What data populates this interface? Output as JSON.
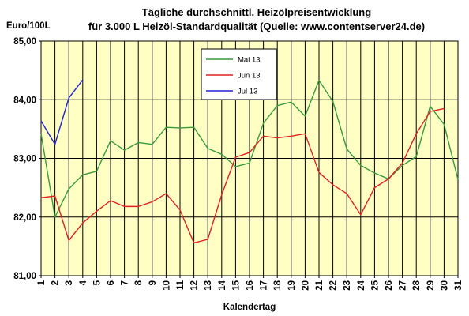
{
  "chart_data": {
    "type": "line",
    "title": [
      "Tägliche durchschnittl. Heizölpreisentwicklung",
      "für 3.000 L Heizöl-Standardqualität (Quelle: www.contentserver24.de)"
    ],
    "ylabel": "Euro/100L",
    "xlabel": "Kalendertag",
    "x": [
      1,
      2,
      3,
      4,
      5,
      6,
      7,
      8,
      9,
      10,
      11,
      12,
      13,
      14,
      15,
      16,
      17,
      18,
      19,
      20,
      21,
      22,
      23,
      24,
      25,
      26,
      27,
      28,
      29,
      30,
      31
    ],
    "ylim": [
      81,
      85
    ],
    "yticks": [
      81,
      82,
      83,
      84,
      85
    ],
    "ytick_labels": [
      "81,00",
      "82,00",
      "83,00",
      "84,00",
      "85,00"
    ],
    "grid": true,
    "legend_position": "top-center",
    "series": [
      {
        "name": "Mai 13",
        "color": "#3a9a3a",
        "values": [
          83.42,
          82.0,
          82.48,
          82.72,
          82.78,
          83.3,
          83.14,
          83.27,
          83.24,
          83.53,
          83.52,
          83.53,
          83.17,
          83.07,
          82.86,
          82.92,
          83.6,
          83.9,
          83.96,
          83.72,
          84.33,
          83.97,
          83.16,
          82.88,
          82.75,
          82.65,
          82.88,
          83.03,
          83.89,
          83.58,
          82.64
        ]
      },
      {
        "name": "Jun 13",
        "color": "#e02020",
        "values": [
          82.33,
          82.36,
          81.6,
          81.9,
          82.1,
          82.28,
          82.18,
          82.18,
          82.26,
          82.4,
          82.12,
          81.56,
          81.62,
          82.38,
          83.02,
          83.1,
          83.38,
          83.35,
          83.38,
          83.42,
          82.76,
          82.55,
          82.4,
          82.04,
          82.5,
          82.65,
          82.92,
          83.42,
          83.8,
          83.85,
          null
        ]
      },
      {
        "name": "Jul 13",
        "color": "#2020d0",
        "values": [
          83.64,
          83.24,
          84.03,
          84.34,
          null,
          null,
          null,
          null,
          null,
          null,
          null,
          null,
          null,
          null,
          null,
          null,
          null,
          null,
          null,
          null,
          null,
          null,
          null,
          null,
          null,
          null,
          null,
          null,
          null,
          null,
          null
        ]
      }
    ]
  }
}
